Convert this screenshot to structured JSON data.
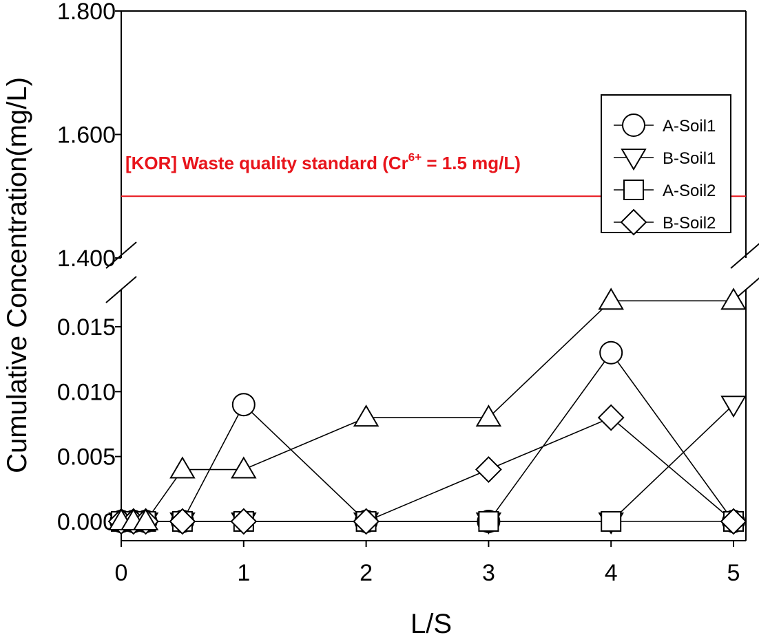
{
  "chart_data": {
    "type": "line",
    "title": "",
    "xlabel": "L/S",
    "ylabel": "Cumulative Concentration(mg/L)",
    "x_ticks": [
      "0",
      "1",
      "2",
      "3",
      "4",
      "5"
    ],
    "xlim": [
      0,
      5
    ],
    "y_axis_break": true,
    "y_lower_range": [
      0,
      0.018
    ],
    "y_lower_ticks": [
      "0.000",
      "0.005",
      "0.010",
      "0.015"
    ],
    "y_upper_range": [
      1.4,
      1.8
    ],
    "y_upper_ticks": [
      "1.400",
      "1.600",
      "1.800"
    ],
    "reference_line": {
      "y": 1.5,
      "color": "#e8141b",
      "label_before": "[KOR] Waste quality standard (Cr",
      "label_sup": "6+",
      "label_after": " = 1.5 mg/L)"
    },
    "legend_position": "top-right",
    "series": [
      {
        "name": "A-Soil1",
        "marker": "circle",
        "x": [
          0,
          0.1,
          0.2,
          0.5,
          1,
          2,
          3,
          4,
          5
        ],
        "y": [
          0,
          0,
          0,
          0,
          0.009,
          0,
          0,
          0.013,
          0
        ]
      },
      {
        "name": "B-Soil1",
        "marker": "triangle-down",
        "x": [
          0,
          0.1,
          0.2,
          0.5,
          1,
          2,
          3,
          4,
          5
        ],
        "y": [
          0,
          0,
          0,
          0,
          0,
          0,
          0,
          0,
          0.009
        ]
      },
      {
        "name": "A-Soil2",
        "marker": "square",
        "x": [
          0,
          0.1,
          0.2,
          0.5,
          1,
          2,
          3,
          4,
          5
        ],
        "y": [
          0,
          0,
          0,
          0,
          0,
          0,
          0,
          0,
          0
        ]
      },
      {
        "name": "B-Soil2",
        "marker": "diamond",
        "x": [
          0,
          0.1,
          0.2,
          0.5,
          1,
          2,
          3,
          4,
          5
        ],
        "y": [
          0,
          0,
          0,
          0,
          0,
          0,
          0.004,
          0.008,
          0
        ]
      },
      {
        "name": "",
        "marker": "triangle-up",
        "x": [
          0,
          0.1,
          0.2,
          0.5,
          1,
          2,
          3,
          4,
          5
        ],
        "y": [
          0,
          0,
          0,
          0.004,
          0.004,
          0.008,
          0.008,
          0.017,
          0.017
        ]
      }
    ]
  }
}
